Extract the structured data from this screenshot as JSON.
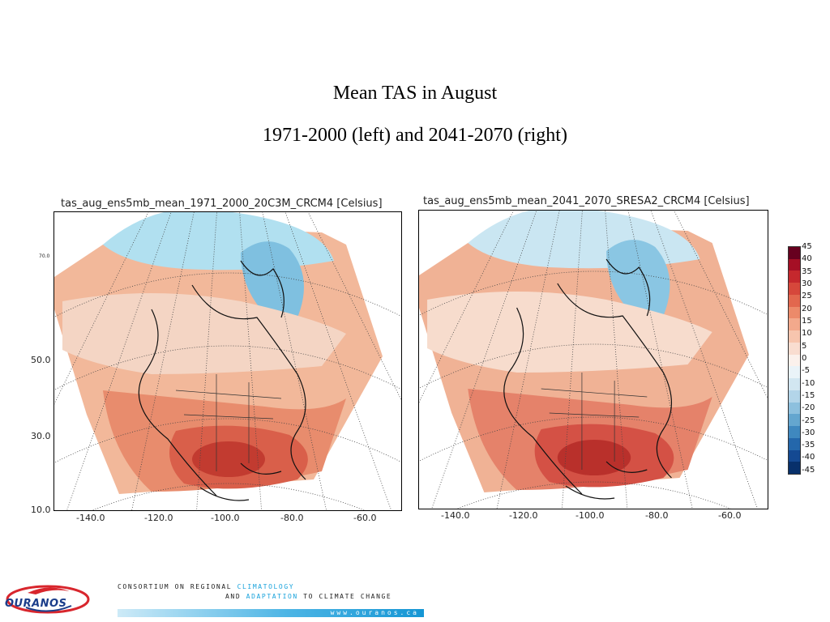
{
  "slide": {
    "title_line1": "Mean TAS in August",
    "title_line2": "1971-2000 (left) and 2041-2070 (right)"
  },
  "maps": [
    {
      "title": "tas_aug_ens5mb_mean_1971_2000_20C3M_CRCM4 [Celsius]",
      "lat_labels": [
        "70.0",
        "50.0",
        "30.0",
        "10.0"
      ],
      "lon_labels": [
        "-140.0",
        "-120.0",
        "-100.0",
        "-80.0",
        "-60.0"
      ],
      "palette": [
        "#f4d5c4",
        "#f2b89a",
        "#e88c6d",
        "#d95f4a",
        "#c23b30",
        "#b1e0f0",
        "#7fc0e0"
      ]
    },
    {
      "title": "tas_aug_ens5mb_mean_2041_2070_SRESA2_CRCM4 [Celsius]",
      "lat_labels": [],
      "lon_labels": [
        "-140.0",
        "-120.0",
        "-100.0",
        "-80.0",
        "-60.0"
      ],
      "palette": [
        "#f7dccd",
        "#f0b295",
        "#e5826a",
        "#d45145",
        "#b9302b",
        "#cae6f2",
        "#8ac6e3"
      ]
    }
  ],
  "colorbar": {
    "labels": [
      "45",
      "40",
      "35",
      "30",
      "25",
      "20",
      "15",
      "10",
      "5",
      "0",
      "-5",
      "-10",
      "-15",
      "-20",
      "-25",
      "-30",
      "-35",
      "-40",
      "-45"
    ],
    "colors": [
      "#67001f",
      "#a50f25",
      "#c5282d",
      "#d6473b",
      "#e2674e",
      "#ec8a6a",
      "#f3a98c",
      "#f7c5ae",
      "#f9ddd0",
      "#fbf1ec",
      "#eaf3f8",
      "#d2e6f1",
      "#b3d5e9",
      "#8dc0de",
      "#64a6cf",
      "#3f88bf",
      "#2467ab",
      "#144992",
      "#08306b"
    ]
  },
  "footer": {
    "logo_text": "OURANOS",
    "line1_prefix": "CONSORTIUM ON REGIONAL ",
    "line1_highlight": "CLIMATOLOGY",
    "line2_prefix": "AND ",
    "line2_highlight": "ADAPTATION",
    "line2_suffix": " TO CLIMATE CHANGE",
    "website": "www.ouranos.ca"
  }
}
